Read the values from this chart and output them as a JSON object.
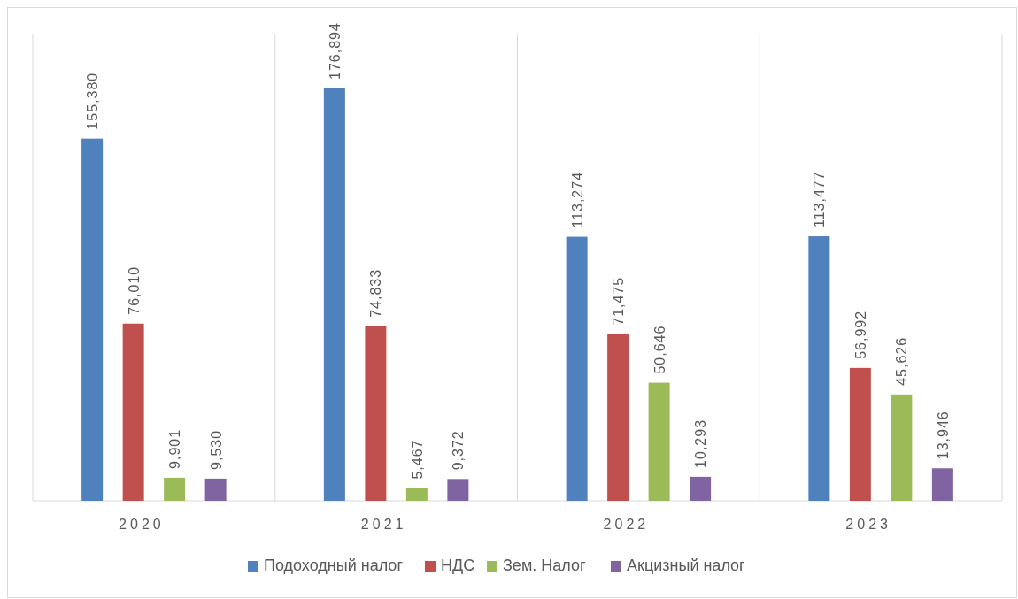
{
  "chart_data": {
    "type": "bar",
    "categories": [
      "2020",
      "2021",
      "2022",
      "2023"
    ],
    "series": [
      {
        "name": "Подоходный налог",
        "color": "#4f81bd",
        "values": [
          155380,
          176894,
          113274,
          113477
        ],
        "value_labels": [
          "155,380",
          "176,894",
          "113,274",
          "113,477"
        ]
      },
      {
        "name": "НДС",
        "color": "#c0504d",
        "values": [
          76010,
          74833,
          71475,
          56992
        ],
        "value_labels": [
          "76,010",
          "74,833",
          "71,475",
          "56,992"
        ]
      },
      {
        "name": "Зем. Налог",
        "color": "#9bbb59",
        "values": [
          9901,
          5467,
          50646,
          45626
        ],
        "value_labels": [
          "9,901",
          "5,467",
          "50,646",
          "45,626"
        ]
      },
      {
        "name": "Акцизный налог",
        "color": "#8064a2",
        "values": [
          9530,
          9372,
          10293,
          13946
        ],
        "value_labels": [
          "9,530",
          "9,372",
          "10,293",
          "13,946"
        ]
      }
    ],
    "legend": "bottom"
  }
}
